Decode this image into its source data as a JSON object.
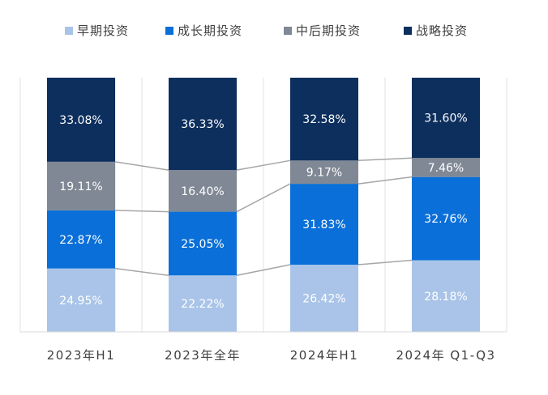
{
  "chart_data": {
    "type": "bar",
    "stacked": true,
    "percent": true,
    "categories": [
      "2023年H1",
      "2023年全年",
      "2024年H1",
      "2024年 Q1-Q3"
    ],
    "series": [
      {
        "name": "早期投资",
        "color": "#A9C4E8",
        "values": [
          24.95,
          22.22,
          26.42,
          28.18
        ],
        "labels": [
          "24.95%",
          "22.22%",
          "26.42%",
          "28.18%"
        ]
      },
      {
        "name": "成长期投资",
        "color": "#0A6FD8",
        "values": [
          22.87,
          25.05,
          31.83,
          32.76
        ],
        "labels": [
          "22.87%",
          "25.05%",
          "31.83%",
          "32.76%"
        ]
      },
      {
        "name": "中后期投资",
        "color": "#7F8894",
        "values": [
          19.11,
          16.4,
          9.17,
          7.46
        ],
        "labels": [
          "19.11%",
          "16.40%",
          "9.17%",
          "7.46%"
        ]
      },
      {
        "name": "战略投资",
        "color": "#0D2F5E",
        "values": [
          33.08,
          36.33,
          32.58,
          31.6
        ],
        "labels": [
          "33.08%",
          "36.33%",
          "32.58%",
          "31.60%"
        ]
      }
    ],
    "ylim": [
      0,
      100
    ],
    "legend_position": "top",
    "grid": true,
    "series_lines": true
  }
}
